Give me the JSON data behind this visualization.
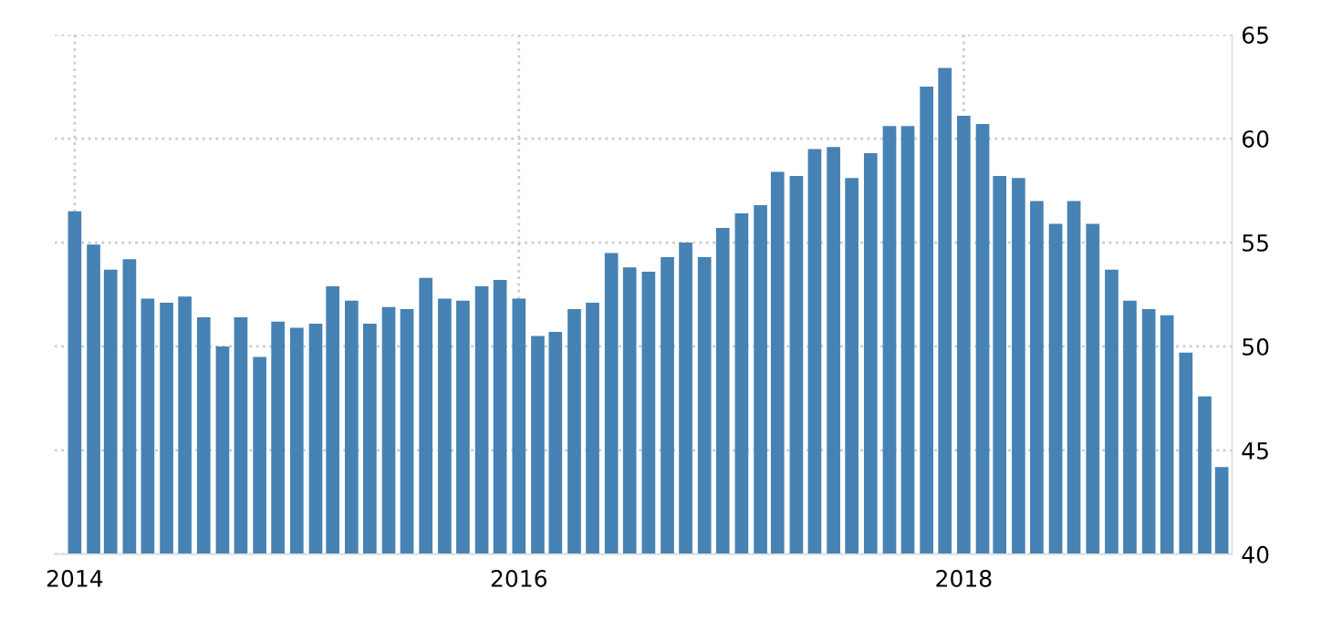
{
  "chart_data": {
    "type": "bar",
    "x": [
      "2014-01",
      "2014-02",
      "2014-03",
      "2014-04",
      "2014-05",
      "2014-06",
      "2014-07",
      "2014-08",
      "2014-09",
      "2014-10",
      "2014-11",
      "2014-12",
      "2015-01",
      "2015-02",
      "2015-03",
      "2015-04",
      "2015-05",
      "2015-06",
      "2015-07",
      "2015-08",
      "2015-09",
      "2015-10",
      "2015-11",
      "2015-12",
      "2016-01",
      "2016-02",
      "2016-03",
      "2016-04",
      "2016-05",
      "2016-06",
      "2016-07",
      "2016-08",
      "2016-09",
      "2016-10",
      "2016-11",
      "2016-12",
      "2017-01",
      "2017-02",
      "2017-03",
      "2017-04",
      "2017-05",
      "2017-06",
      "2017-07",
      "2017-08",
      "2017-09",
      "2017-10",
      "2017-11",
      "2017-12",
      "2018-01",
      "2018-02",
      "2018-03",
      "2018-04",
      "2018-05",
      "2018-06",
      "2018-07",
      "2018-08",
      "2018-09",
      "2018-10",
      "2018-11",
      "2018-12",
      "2019-01",
      "2019-02",
      "2019-03"
    ],
    "values": [
      56.5,
      54.9,
      53.7,
      54.2,
      52.3,
      52.1,
      52.4,
      51.4,
      50.0,
      51.4,
      49.5,
      51.2,
      50.9,
      51.1,
      52.9,
      52.2,
      51.1,
      51.9,
      51.8,
      53.3,
      52.3,
      52.2,
      52.9,
      53.2,
      52.3,
      50.5,
      50.7,
      51.8,
      52.1,
      54.5,
      53.8,
      53.6,
      54.3,
      55.0,
      54.3,
      55.7,
      56.4,
      56.8,
      58.4,
      58.2,
      59.5,
      59.6,
      58.1,
      59.3,
      60.6,
      60.6,
      62.5,
      63.4,
      61.1,
      60.7,
      58.2,
      58.1,
      57.0,
      55.9,
      57.0,
      55.9,
      53.7,
      52.2,
      51.8,
      51.5,
      49.7,
      47.6,
      44.2
    ],
    "color": "#4682b4",
    "xlim": [
      "2013-11-29",
      "2019-03-18"
    ],
    "xticks": [
      {
        "value": "2014-01-01",
        "label": "2014"
      },
      {
        "value": "2016-01-01",
        "label": "2016"
      },
      {
        "value": "2018-01-01",
        "label": "2018"
      }
    ],
    "ylim": [
      40,
      65
    ],
    "yticks": [
      40,
      45,
      50,
      55,
      60,
      65
    ],
    "grid": true,
    "legend": false
  }
}
